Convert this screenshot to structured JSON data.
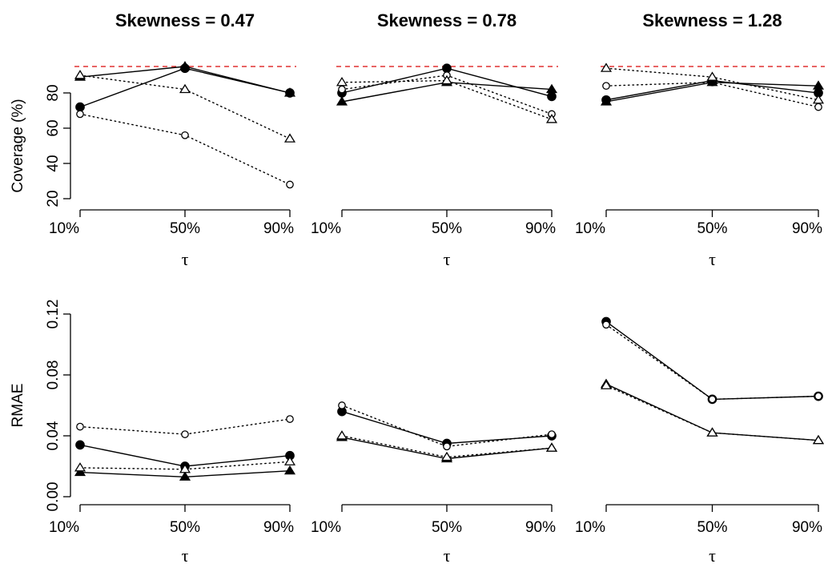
{
  "chart_data": [
    {
      "type": "line",
      "title": "Skewness =  0.47",
      "xlabel": "τ",
      "ylabel": "Coverage (%)",
      "categories": [
        "10%",
        "50%",
        "90%"
      ],
      "ylim": [
        20,
        100
      ],
      "y_ticks": [
        20,
        40,
        60,
        80
      ],
      "reference_line": {
        "y": 95,
        "color": "#e03030",
        "style": "dashed"
      },
      "series": [
        {
          "marker": "filled-circle",
          "line": "solid",
          "values": [
            72,
            94,
            80
          ]
        },
        {
          "marker": "open-circle",
          "line": "dotted",
          "values": [
            68,
            56,
            28
          ]
        },
        {
          "marker": "filled-triangle",
          "line": "solid",
          "values": [
            89,
            95,
            80
          ]
        },
        {
          "marker": "open-triangle",
          "line": "dotted",
          "values": [
            90,
            82,
            54
          ]
        }
      ]
    },
    {
      "type": "line",
      "title": "Skewness =  0.78",
      "xlabel": "τ",
      "ylabel": "",
      "categories": [
        "10%",
        "50%",
        "90%"
      ],
      "ylim": [
        20,
        100
      ],
      "reference_line": {
        "y": 95,
        "color": "#e03030",
        "style": "dashed"
      },
      "series": [
        {
          "marker": "filled-circle",
          "line": "solid",
          "values": [
            80,
            94,
            78
          ]
        },
        {
          "marker": "open-circle",
          "line": "dotted",
          "values": [
            82,
            90,
            68
          ]
        },
        {
          "marker": "filled-triangle",
          "line": "solid",
          "values": [
            75,
            86,
            82
          ]
        },
        {
          "marker": "open-triangle",
          "line": "dotted",
          "values": [
            86,
            87,
            65
          ]
        }
      ]
    },
    {
      "type": "line",
      "title": "Skewness =  1.28",
      "xlabel": "τ",
      "ylabel": "",
      "categories": [
        "10%",
        "50%",
        "90%"
      ],
      "ylim": [
        20,
        100
      ],
      "reference_line": {
        "y": 95,
        "color": "#e03030",
        "style": "dashed"
      },
      "series": [
        {
          "marker": "filled-circle",
          "line": "solid",
          "values": [
            76,
            87,
            80
          ]
        },
        {
          "marker": "open-circle",
          "line": "dotted",
          "values": [
            84,
            86,
            72
          ]
        },
        {
          "marker": "filled-triangle",
          "line": "solid",
          "values": [
            75,
            86,
            84
          ]
        },
        {
          "marker": "open-triangle",
          "line": "dotted",
          "values": [
            94,
            89,
            76
          ]
        }
      ]
    },
    {
      "type": "line",
      "title": "",
      "xlabel": "τ",
      "ylabel": "RMAE",
      "categories": [
        "10%",
        "50%",
        "90%"
      ],
      "ylim": [
        0,
        0.12
      ],
      "y_ticks": [
        0.0,
        0.04,
        0.08,
        0.12
      ],
      "y_tick_labels": [
        "0.00",
        "0.04",
        "0.08",
        "0.12"
      ],
      "series": [
        {
          "marker": "filled-circle",
          "line": "solid",
          "values": [
            0.034,
            0.02,
            0.027
          ]
        },
        {
          "marker": "open-circle",
          "line": "dotted",
          "values": [
            0.046,
            0.041,
            0.051
          ]
        },
        {
          "marker": "filled-triangle",
          "line": "solid",
          "values": [
            0.016,
            0.013,
            0.017
          ]
        },
        {
          "marker": "open-triangle",
          "line": "dotted",
          "values": [
            0.019,
            0.018,
            0.023
          ]
        }
      ]
    },
    {
      "type": "line",
      "title": "",
      "xlabel": "τ",
      "ylabel": "",
      "categories": [
        "10%",
        "50%",
        "90%"
      ],
      "ylim": [
        0,
        0.12
      ],
      "series": [
        {
          "marker": "filled-circle",
          "line": "solid",
          "values": [
            0.056,
            0.035,
            0.04
          ]
        },
        {
          "marker": "open-circle",
          "line": "dotted",
          "values": [
            0.06,
            0.033,
            0.041
          ]
        },
        {
          "marker": "filled-triangle",
          "line": "solid",
          "values": [
            0.039,
            0.025,
            0.032
          ]
        },
        {
          "marker": "open-triangle",
          "line": "dotted",
          "values": [
            0.04,
            0.026,
            0.032
          ]
        }
      ]
    },
    {
      "type": "line",
      "title": "",
      "xlabel": "τ",
      "ylabel": "",
      "categories": [
        "10%",
        "50%",
        "90%"
      ],
      "ylim": [
        0,
        0.12
      ],
      "series": [
        {
          "marker": "filled-circle",
          "line": "solid",
          "values": [
            0.115,
            0.064,
            0.066
          ]
        },
        {
          "marker": "open-circle",
          "line": "dotted",
          "values": [
            0.113,
            0.064,
            0.066
          ]
        },
        {
          "marker": "filled-triangle",
          "line": "solid",
          "values": [
            0.074,
            0.042,
            0.037
          ]
        },
        {
          "marker": "open-triangle",
          "line": "dotted",
          "values": [
            0.073,
            0.042,
            0.037
          ]
        }
      ]
    }
  ]
}
